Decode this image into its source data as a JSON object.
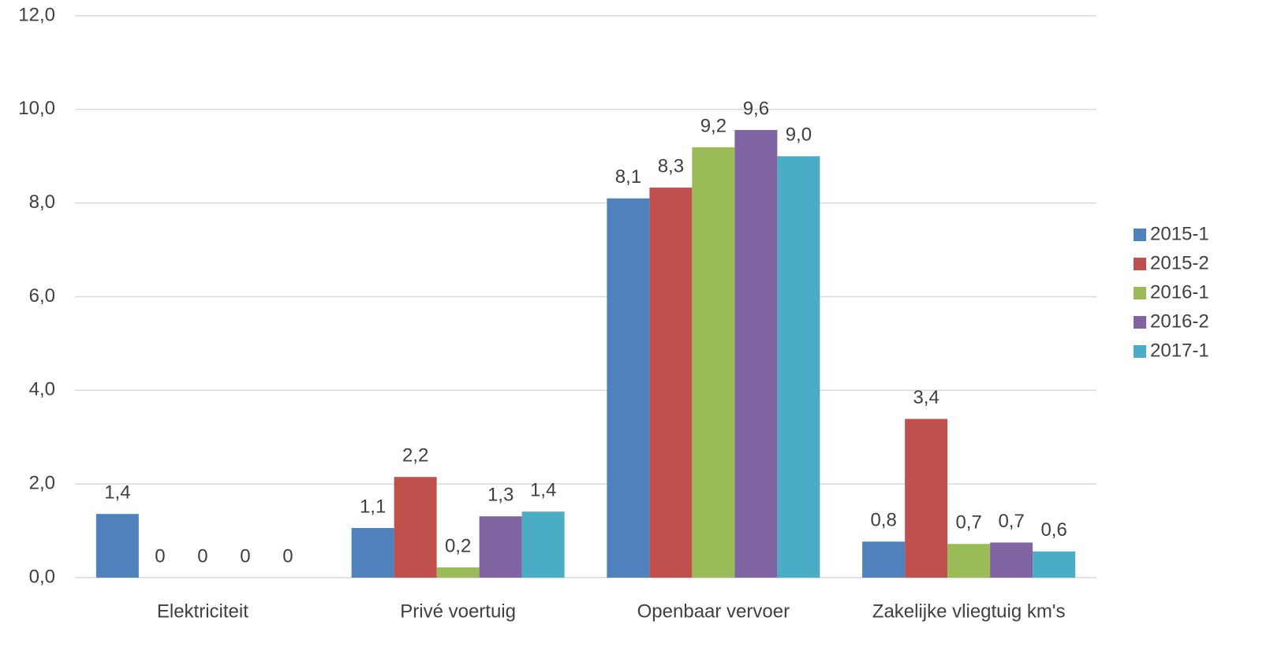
{
  "chart_data": {
    "type": "bar",
    "categories": [
      "Elektriciteit",
      "Privé voertuig",
      "Openbaar vervoer",
      "Zakelijke vliegtuig km's"
    ],
    "series": [
      {
        "name": "2015-1",
        "color": "#4f81bd",
        "values": [
          1.36,
          1.06,
          8.1,
          0.77
        ],
        "value_labels": [
          "1,4",
          "1,1",
          "8,1",
          "0,8"
        ]
      },
      {
        "name": "2015-2",
        "color": "#c0504d",
        "values": [
          0,
          2.15,
          8.33,
          3.39
        ],
        "value_labels": [
          "0",
          "2,2",
          "8,3",
          "3,4"
        ]
      },
      {
        "name": "2016-1",
        "color": "#9bbb59",
        "values": [
          0,
          0.22,
          9.19,
          0.72
        ],
        "value_labels": [
          "0",
          "0,2",
          "9,2",
          "0,7"
        ]
      },
      {
        "name": "2016-2",
        "color": "#8064a2",
        "values": [
          0,
          1.31,
          9.56,
          0.75
        ],
        "value_labels": [
          "0",
          "1,3",
          "9,6",
          "0,7"
        ]
      },
      {
        "name": "2017-1",
        "color": "#4bacc6",
        "values": [
          0,
          1.41,
          9.0,
          0.56
        ],
        "value_labels": [
          "0",
          "1,4",
          "9,0",
          "0,6"
        ]
      }
    ],
    "ylim": [
      0,
      12
    ],
    "yticks": [
      {
        "value": 0,
        "label": "0,0"
      },
      {
        "value": 2,
        "label": "2,0"
      },
      {
        "value": 4,
        "label": "4,0"
      },
      {
        "value": 6,
        "label": "6,0"
      },
      {
        "value": 8,
        "label": "8,0"
      },
      {
        "value": 10,
        "label": "10,0"
      },
      {
        "value": 12,
        "label": "12,0"
      }
    ],
    "grid": true,
    "legend": "right"
  }
}
